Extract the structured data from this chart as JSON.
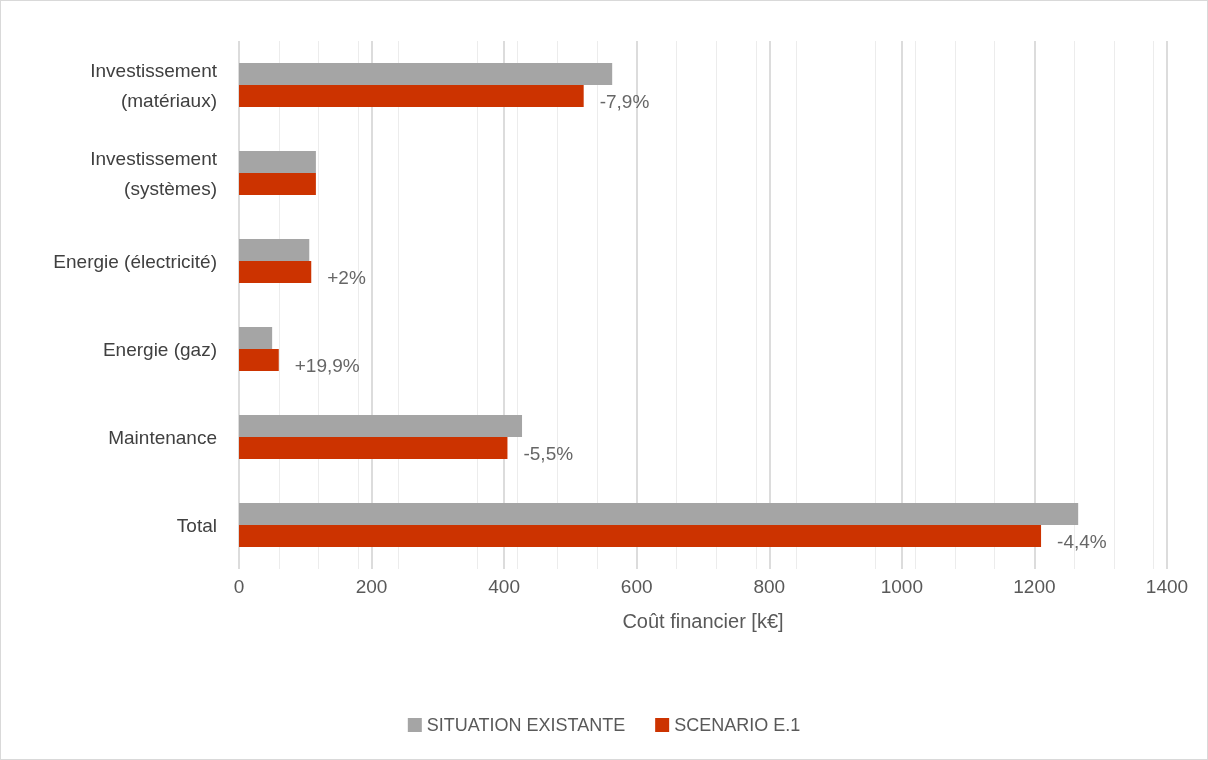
{
  "chart_data": {
    "type": "bar",
    "orientation": "horizontal",
    "xlabel": "Coût financier [k€]",
    "categories": [
      "Investissement\n(matériaux)",
      "Investissement\n(systèmes)",
      "Energie (électricité)",
      "Energie (gaz)",
      "Maintenance",
      "Total"
    ],
    "series": [
      {
        "name": "SITUATION EXISTANTE",
        "color": "#a5a5a5",
        "values": [
          563,
          116,
          106,
          50,
          427,
          1266
        ]
      },
      {
        "name": "SCENARIO E.1",
        "color": "#cc3300",
        "values": [
          520,
          116,
          109,
          60,
          405,
          1210
        ]
      }
    ],
    "annotations": [
      {
        "text": "-7,9%",
        "x": 520,
        "y": "Investissement\n(matériaux)"
      },
      {
        "text": "+2%",
        "x": 109,
        "y": "Energie (électricité)"
      },
      {
        "text": "+19,9%",
        "x": 60,
        "y": "Energie (gaz)"
      },
      {
        "text": "-5,5%",
        "x": 405,
        "y": "Maintenance"
      },
      {
        "text": "-4,4%",
        "x": 1210,
        "y": "Total"
      }
    ],
    "xlim": [
      0,
      1400
    ],
    "xticks": [
      0,
      200,
      400,
      600,
      800,
      1000,
      1200,
      1400
    ],
    "grid": "x",
    "legend": "bottom"
  }
}
